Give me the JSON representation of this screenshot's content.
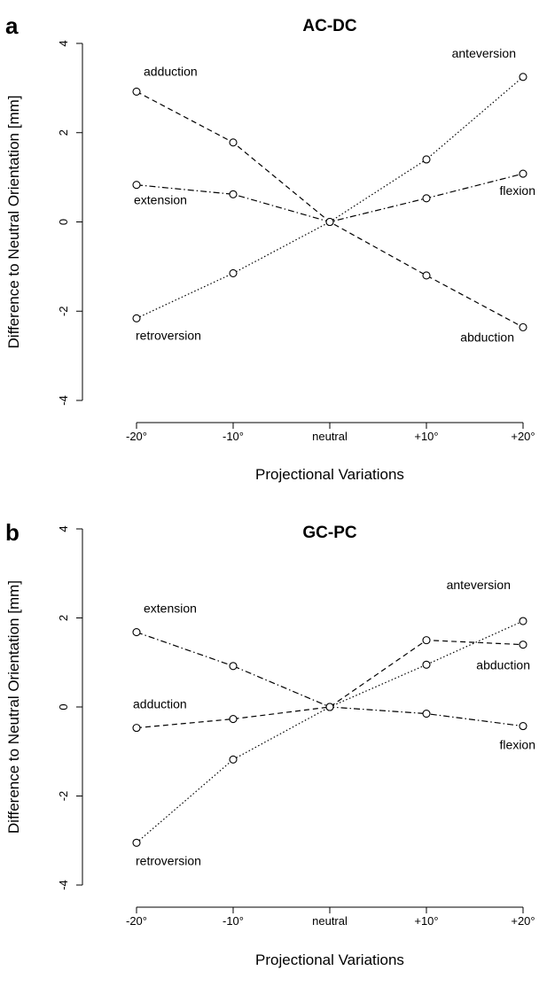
{
  "chart_data": [
    {
      "panel": "a",
      "type": "line",
      "title": "AC-DC",
      "xlabel": "Projectional Variations",
      "ylabel": "Difference to Neutral Orientation [mm]",
      "categories": [
        "-20°",
        "-10°",
        "neutral",
        "+10°",
        "+20°"
      ],
      "ylim": [
        -4,
        4
      ],
      "yticks": [
        "-4",
        "-2",
        "0",
        "2",
        "4"
      ],
      "grid": false,
      "series": [
        {
          "name": "adduction",
          "line_style": "dashed",
          "values": [
            2.92,
            1.78,
            0,
            -1.2,
            -2.36
          ]
        },
        {
          "name": "extension",
          "line_style": "dashdot",
          "values": [
            0.83,
            0.62,
            0,
            0.53,
            1.08
          ]
        },
        {
          "name": "retroversion",
          "line_style": "dotted",
          "values": [
            -2.16,
            -1.15,
            0,
            1.4,
            3.25
          ]
        }
      ],
      "annotations": [
        {
          "text": "adduction"
        },
        {
          "text": "extension"
        },
        {
          "text": "retroversion"
        },
        {
          "text": "anteversion"
        },
        {
          "text": "flexion"
        },
        {
          "text": "abduction"
        }
      ]
    },
    {
      "panel": "b",
      "type": "line",
      "title": "GC-PC",
      "xlabel": "Projectional Variations",
      "ylabel": "Difference to Neutral Orientation [mm]",
      "categories": [
        "-20°",
        "-10°",
        "neutral",
        "+10°",
        "+20°"
      ],
      "ylim": [
        -4,
        4
      ],
      "yticks": [
        "-4",
        "-2",
        "0",
        "2",
        "4"
      ],
      "grid": false,
      "series": [
        {
          "name": "extension",
          "line_style": "dashdot",
          "values": [
            1.68,
            0.92,
            0,
            -0.15,
            -0.43
          ]
        },
        {
          "name": "adduction",
          "line_style": "dashed",
          "values": [
            -0.47,
            -0.27,
            0,
            1.5,
            1.4
          ]
        },
        {
          "name": "retroversion",
          "line_style": "dotted",
          "values": [
            -3.05,
            -1.18,
            0,
            0.95,
            1.93
          ]
        }
      ],
      "annotations": [
        {
          "text": "extension"
        },
        {
          "text": "adduction"
        },
        {
          "text": "retroversion"
        },
        {
          "text": "anteversion"
        },
        {
          "text": "abduction"
        },
        {
          "text": "flexion"
        }
      ]
    }
  ]
}
